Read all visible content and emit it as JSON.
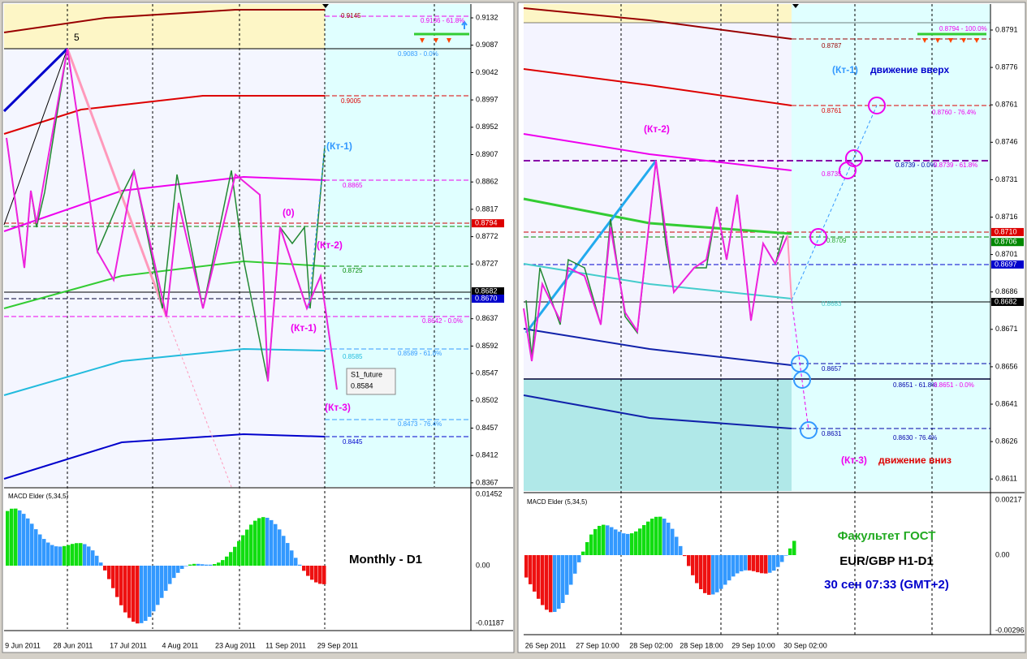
{
  "left_panel": {
    "price_axis": [
      "0.9132",
      "0.9087",
      "0.9042",
      "0.8997",
      "0.8952",
      "0.8907",
      "0.8862",
      "0.8817",
      "0.8772",
      "0.8727",
      "0.8637",
      "0.8592",
      "0.8547",
      "0.8502",
      "0.8457",
      "0.8412",
      "0.8367"
    ],
    "price_boxes": {
      "red": "0.8794",
      "black": "0.8682",
      "blue": "0.8670"
    },
    "macd_axis": [
      "0.01452",
      "0.00",
      "-0.01187"
    ],
    "time_axis": [
      "9 Jun 2011",
      "28 Jun 2011",
      "17 Jul 2011",
      "4 Aug 2011",
      "23 Aug 2011",
      "11 Sep 2011",
      "29 Sep 2011"
    ],
    "levels": [
      "0.9145",
      "0.9136 - 61.8%",
      "0.9083 - 0.0%",
      "0.9005",
      "0.8865",
      "0.8725",
      "0.8642 - 0.0%",
      "0.8585",
      "0.8589 - 61.8%",
      "0.8473 - 76.4%",
      "0.8445"
    ],
    "marks": [
      "5",
      "(Кт-1)",
      "(0)",
      "(Кт-2)",
      "(Кт-1)",
      "(Кт-3)"
    ],
    "tooltip": {
      "name": "S1_future",
      "value": "0.8584"
    },
    "indicator": "MACD Elder (5,34,5)",
    "caption": "Monthly - D1"
  },
  "right_panel": {
    "price_axis": [
      "0.8791",
      "0.8776",
      "0.8761",
      "0.8746",
      "0.8731",
      "0.8716",
      "0.8701",
      "0.8686",
      "0.8671",
      "0.8656",
      "0.8641",
      "0.8626",
      "0.8611"
    ],
    "price_boxes": {
      "red": "0.8710",
      "green": "0.8706",
      "blue": "0.8697",
      "black": "0.8682"
    },
    "macd_axis": [
      "0.00217",
      "0.00",
      "-0.00296"
    ],
    "time_axis": [
      "26 Sep 2011",
      "27 Sep 10:00",
      "28 Sep 02:00",
      "28 Sep 18:00",
      "29 Sep 10:00",
      "30 Sep 02:00"
    ],
    "levels": [
      "0.8787",
      "0.8794 - 100.0%",
      "0.8761",
      "0.8760 - 76.4%",
      "0.8739 - 0.0%",
      "0.8739 - 61.8%",
      "0.8735",
      "0.8709",
      "0.8683",
      "0.8657",
      "0.8651 - 61.8%",
      "0.8651 - 0.0%",
      "0.8631",
      "0.8630 - 76.4%"
    ],
    "marks": [
      "(Кт-1)",
      "движение вверх",
      "(Кт-2)",
      "(Кт-3)",
      "движение вниз"
    ],
    "indicator": "MACD Elder (5,34,5)",
    "caption": [
      "Факультет ГОСТ",
      "EUR/GBP H1-D1",
      "30 сен 07:33 (GMT+2)"
    ]
  }
}
